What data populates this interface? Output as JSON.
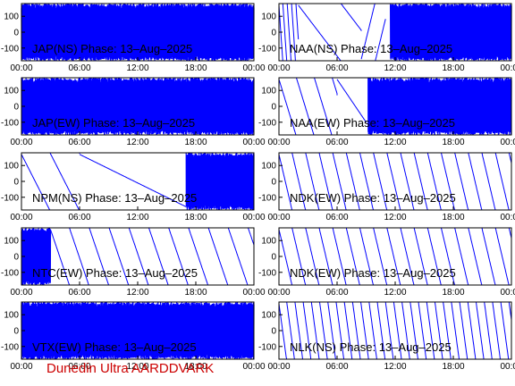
{
  "footer": "Dunedin Ultra AARDDVARK",
  "colors": {
    "trace": "#0000ff",
    "axis": "#000000",
    "footer": "#cc0000"
  },
  "chart_data": [
    {
      "type": "line",
      "title": "JAP(NS) Phase: 13–Aug–2025",
      "xlim": [
        "00:00",
        "24:00"
      ],
      "ylim": [
        -180,
        180
      ],
      "yticks": [
        100,
        0,
        -100
      ],
      "xticks": [
        "00:00",
        "06:00",
        "12:00",
        "18:00",
        "00:00"
      ],
      "series": [
        {
          "pattern": "dense",
          "x_hours": [
            0,
            24
          ]
        }
      ]
    },
    {
      "type": "line",
      "title": "NAA(NS) Phase: 13–Aug–2025",
      "xlim": [
        "00:00",
        "24:00"
      ],
      "ylim": [
        -180,
        180
      ],
      "yticks": [
        100,
        0,
        -100
      ],
      "xticks": [
        "00:00",
        "06:00",
        "12:00",
        "18:00",
        "00:00"
      ],
      "series": [
        {
          "pattern": "ramps",
          "x_hours": [
            0,
            2
          ],
          "slope_per_hour": -900
        },
        {
          "pattern": "ramps",
          "x_hours": [
            2,
            8.5
          ],
          "slope_per_hour": -80
        },
        {
          "pattern": "ramps",
          "x_hours": [
            8.5,
            11
          ],
          "slope_per_hour": 250
        },
        {
          "pattern": "dense",
          "x_hours": [
            11.5,
            24
          ]
        }
      ]
    },
    {
      "type": "line",
      "title": "JAP(EW) Phase: 13–Aug–2025",
      "xlim": [
        "00:00",
        "24:00"
      ],
      "ylim": [
        -180,
        180
      ],
      "yticks": [
        100,
        0,
        -100
      ],
      "xticks": [
        "00:00",
        "06:00",
        "12:00",
        "18:00",
        "00:00"
      ],
      "series": [
        {
          "pattern": "dense",
          "x_hours": [
            0,
            24
          ]
        }
      ]
    },
    {
      "type": "line",
      "title": "NAA(EW) Phase: 13–Aug–2025",
      "xlim": [
        "00:00",
        "24:00"
      ],
      "ylim": [
        -180,
        180
      ],
      "yticks": [
        100,
        0,
        -100
      ],
      "xticks": [
        "00:00",
        "06:00",
        "12:00",
        "18:00",
        "00:00"
      ],
      "series": [
        {
          "pattern": "ramps",
          "x_hours": [
            0,
            6
          ],
          "slope_per_hour": -200
        },
        {
          "pattern": "ramps",
          "x_hours": [
            6,
            9
          ],
          "slope_per_hour": -90
        },
        {
          "pattern": "dense",
          "x_hours": [
            9.2,
            24
          ]
        }
      ]
    },
    {
      "type": "line",
      "title": "NPM(NS) Phase: 13–Aug–2025",
      "xlim": [
        "00:00",
        "24:00"
      ],
      "ylim": [
        -180,
        180
      ],
      "yticks": [
        100,
        0,
        -100
      ],
      "xticks": [
        "00:00",
        "06:00",
        "12:00",
        "18:00",
        "00:00"
      ],
      "series": [
        {
          "pattern": "ramps",
          "x_hours": [
            0,
            6
          ],
          "slope_per_hour": -120
        },
        {
          "pattern": "ramps",
          "x_hours": [
            6,
            17
          ],
          "slope_per_hour": -30
        },
        {
          "pattern": "dense",
          "x_hours": [
            17,
            24
          ]
        }
      ]
    },
    {
      "type": "line",
      "title": "NDK(EW) Phase: 13–Aug–2025",
      "xlim": [
        "00:00",
        "24:00"
      ],
      "ylim": [
        -180,
        180
      ],
      "yticks": [
        100,
        0,
        -100
      ],
      "xticks": [
        "00:00",
        "06:00",
        "12:00",
        "18:00",
        "00:00"
      ],
      "series": [
        {
          "pattern": "ramps",
          "x_hours": [
            0,
            24
          ],
          "slope_per_hour": -260
        }
      ]
    },
    {
      "type": "line",
      "title": "NTC(EW) Phase: 13–Aug–2025",
      "xlim": [
        "00:00",
        "24:00"
      ],
      "ylim": [
        -180,
        180
      ],
      "yticks": [
        100,
        0,
        -100
      ],
      "xticks": [
        "00:00",
        "06:00",
        "12:00",
        "18:00",
        "00:00"
      ],
      "series": [
        {
          "pattern": "dense",
          "x_hours": [
            0,
            3
          ]
        },
        {
          "pattern": "ramps",
          "x_hours": [
            3,
            24
          ],
          "slope_per_hour": -180
        }
      ]
    },
    {
      "type": "line",
      "title": "NDK(EW) Phase: 13–Aug–2025",
      "xlim": [
        "00:00",
        "24:00"
      ],
      "ylim": [
        -180,
        180
      ],
      "yticks": [
        100,
        0,
        -100
      ],
      "xticks": [
        "00:00",
        "06:00",
        "12:00",
        "18:00",
        "00:00"
      ],
      "series": [
        {
          "pattern": "ramps",
          "x_hours": [
            0,
            24
          ],
          "slope_per_hour": -260
        }
      ]
    },
    {
      "type": "line",
      "title": "VTX(EW) Phase: 13–Aug–2025",
      "xlim": [
        "00:00",
        "24:00"
      ],
      "ylim": [
        -180,
        180
      ],
      "yticks": [
        100,
        0,
        -100
      ],
      "xticks": [
        "00:00",
        "06:00",
        "12:00",
        "18:00",
        "00:00"
      ],
      "series": [
        {
          "pattern": "dense",
          "x_hours": [
            0,
            24
          ]
        }
      ]
    },
    {
      "type": "line",
      "title": "NLK(NS) Phase: 13–Aug–2025",
      "xlim": [
        "00:00",
        "24:00"
      ],
      "ylim": [
        -180,
        180
      ],
      "yticks": [
        100,
        0,
        -100
      ],
      "xticks": [
        "00:00",
        "06:00",
        "12:00",
        "18:00",
        "00:00"
      ],
      "series": [
        {
          "pattern": "ramps",
          "x_hours": [
            0,
            24
          ],
          "slope_per_hour": -450
        }
      ]
    }
  ]
}
